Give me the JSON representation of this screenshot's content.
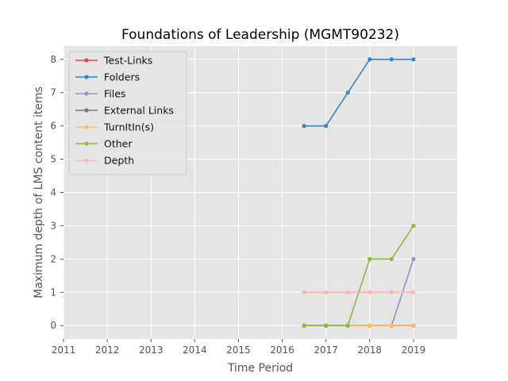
{
  "chart_data": {
    "type": "line",
    "title": "Foundations of Leadership (MGMT90232)",
    "xlabel": "Time Period",
    "ylabel": "Maximum depth of LMS content items",
    "xlim": [
      2011,
      2020
    ],
    "ylim": [
      -0.4,
      8.4
    ],
    "x_ticks": [
      2011,
      2012,
      2013,
      2014,
      2015,
      2016,
      2017,
      2018,
      2019
    ],
    "y_ticks": [
      0,
      1,
      2,
      3,
      4,
      5,
      6,
      7,
      8
    ],
    "grid": true,
    "legend_position": "upper-left",
    "x": [
      2016.5,
      2017.0,
      2017.5,
      2018.0,
      2018.5,
      2019.0
    ],
    "series": [
      {
        "name": "Test-Links",
        "color": "#E24A33",
        "values": [
          0,
          0,
          0,
          0,
          0,
          0
        ]
      },
      {
        "name": "Folders",
        "color": "#348ABD",
        "values": [
          6,
          6,
          7,
          8,
          8,
          8
        ]
      },
      {
        "name": "Files",
        "color": "#988ED5",
        "values": [
          0,
          0,
          0,
          0,
          0,
          2
        ]
      },
      {
        "name": "External Links",
        "color": "#777777",
        "values": [
          0,
          0,
          0,
          0,
          0,
          0
        ]
      },
      {
        "name": "TurnItIn(s)",
        "color": "#FBC15E",
        "values": [
          0,
          0,
          0,
          0,
          0,
          0
        ]
      },
      {
        "name": "Other",
        "color": "#8EBA42",
        "values": [
          0,
          0,
          0,
          2,
          2,
          3
        ]
      },
      {
        "name": "Depth",
        "color": "#FFB5B8",
        "values": [
          1,
          1,
          1,
          1,
          1,
          1
        ]
      }
    ]
  },
  "colors": {
    "plot_background": "#E5E5E5",
    "grid": "#FFFFFF"
  }
}
